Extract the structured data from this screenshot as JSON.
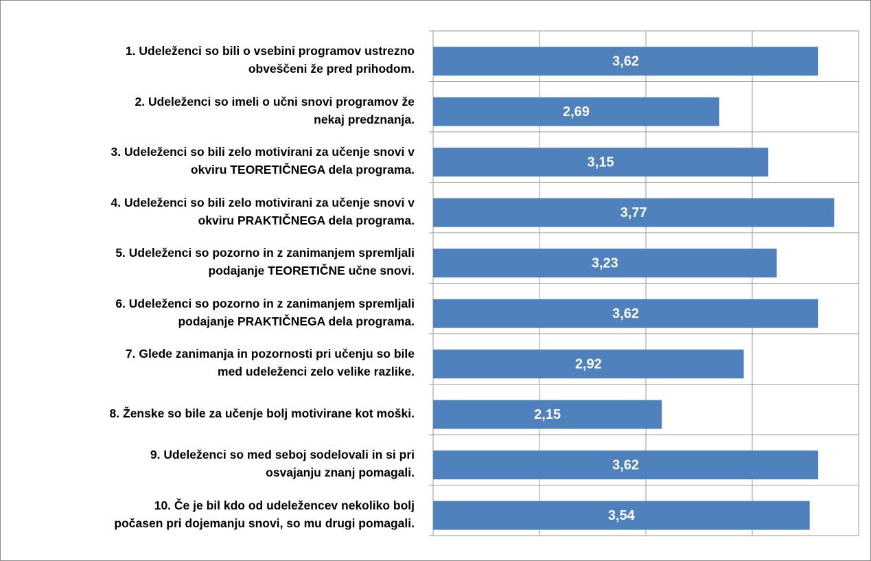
{
  "chart_data": {
    "type": "bar",
    "orientation": "horizontal",
    "categories": [
      "1. Udeleženci so bili o vsebini programov ustrezno\nobveščeni že pred prihodom.",
      "2. Udeleženci so imeli o učni snovi programov že\nnekaj predznanja.",
      "3. Udeleženci so bili zelo motivirani za učenje snovi v\nokviru TEORETIČNEGA dela programa.",
      "4. Udeleženci so bili zelo motivirani za učenje snovi v\nokviru PRAKTIČNEGA dela programa.",
      "5. Udeleženci so pozorno in z zanimanjem spremljali\npodajanje TEORETIČNE učne snovi.",
      "6. Udeleženci so pozorno in z zanimanjem spremljali\npodajanje PRAKTIČNEGA dela programa.",
      "7. Glede zanimanja in pozornosti pri učenju so bile\nmed udeleženci zelo velike razlike.",
      "8. Ženske so bile za učenje bolj motivirane kot moški.",
      "9. Udeleženci so med seboj sodelovali in si pri\nosvajanju znanj pomagali.",
      "10. Če je bil kdo od udeležencev nekoliko bolj\npočasen pri dojemanju snovi, so mu drugi pomagali."
    ],
    "values": [
      3.62,
      2.69,
      3.15,
      3.77,
      3.23,
      3.62,
      2.92,
      2.15,
      3.62,
      3.54
    ],
    "value_labels": [
      "3,62",
      "2,69",
      "3,15",
      "3,77",
      "3,23",
      "3,62",
      "2,92",
      "2,15",
      "3,62",
      "3,54"
    ],
    "color": "#4f81bd",
    "xlim": [
      0,
      4
    ],
    "xticks": [
      0,
      1,
      2,
      3,
      4
    ],
    "grid": true
  }
}
